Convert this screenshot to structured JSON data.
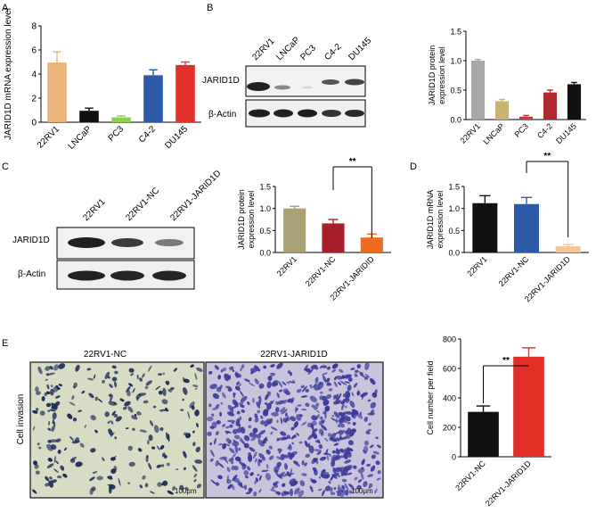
{
  "panels": {
    "A": {
      "letter": "A",
      "chart": {
        "type": "bar",
        "categories": [
          "22RV1",
          "LNCaP",
          "PC3",
          "C4-2",
          "DU145"
        ],
        "values": [
          4.95,
          0.95,
          0.4,
          3.9,
          4.75
        ],
        "errors": [
          0.9,
          0.22,
          0.12,
          0.45,
          0.25
        ],
        "colors": [
          "#e8b47c",
          "#111111",
          "#8fd14f",
          "#2d5aa8",
          "#e23028"
        ],
        "ylabel": "JARID1D mRNA expression level",
        "ylim": [
          0,
          8
        ],
        "yticks": [
          "0",
          "2",
          "4",
          "6",
          "8"
        ]
      }
    },
    "B": {
      "letter": "B",
      "blot_lanes": [
        "22RV1",
        "LNCaP",
        "PC3",
        "C4-2",
        "DU145"
      ],
      "blot_rows": [
        "JARID1D",
        "β-Actin"
      ],
      "chart": {
        "type": "bar",
        "categories": [
          "22RV1",
          "LNCaP",
          "PC3",
          "C4-2",
          "DU145"
        ],
        "values": [
          1.0,
          0.31,
          0.05,
          0.46,
          0.6
        ],
        "errors": [
          0.02,
          0.03,
          0.02,
          0.04,
          0.03
        ],
        "colors": [
          "#a8a8a8",
          "#c9b373",
          "#e23028",
          "#b22a30",
          "#111111"
        ],
        "ylabel_lines": [
          "JARID1D protein",
          "expression level"
        ],
        "ylim": [
          0,
          1.5
        ],
        "yticks": [
          "0.0",
          "0.5",
          "1.0",
          "1.5"
        ]
      }
    },
    "C": {
      "letter": "C",
      "blot_lanes": [
        "22RV1",
        "22RV1-NC",
        "22RV1-JARID1D"
      ],
      "blot_rows": [
        "JARID1D",
        "β-Actin"
      ],
      "chart": {
        "type": "bar",
        "categories": [
          "22RV1",
          "22RV1-NC",
          "22RV1-JARIDID"
        ],
        "values": [
          1.0,
          0.66,
          0.34
        ],
        "errors": [
          0.05,
          0.09,
          0.08
        ],
        "colors": [
          "#a9a076",
          "#a61e2a",
          "#f06b1f"
        ],
        "ylabel_lines": [
          "JARID1D protein",
          "expression level"
        ],
        "ylim": [
          0,
          1.5
        ],
        "yticks": [
          "0.0",
          "0.5",
          "1.0",
          "1.5"
        ],
        "significance": "**"
      }
    },
    "D": {
      "letter": "D",
      "chart": {
        "type": "bar",
        "categories": [
          "22RV1",
          "22RV1-NC",
          "22RV1-JARID1D"
        ],
        "values": [
          1.12,
          1.1,
          0.14
        ],
        "errors": [
          0.17,
          0.15,
          0.04
        ],
        "colors": [
          "#111111",
          "#2d5aa8",
          "#f5c39a"
        ],
        "ylabel_lines": [
          "JARID1D mRNA",
          "expression level"
        ],
        "ylim": [
          0,
          1.5
        ],
        "yticks": [
          "0.0",
          "0.5",
          "1.0",
          "1.5"
        ],
        "significance": "**"
      }
    },
    "E": {
      "letter": "E",
      "image_titles": [
        "22RV1-NC",
        "22RV1-JARID1D"
      ],
      "row_label": "Cell invasion",
      "scale_bar": "100μm",
      "chart": {
        "type": "bar",
        "categories": [
          "22RV1-NC",
          "22RV1-JARID1D"
        ],
        "values": [
          305,
          680
        ],
        "errors": [
          40,
          60
        ],
        "colors": [
          "#111111",
          "#e23028"
        ],
        "ylabel": "Cell number per field",
        "ylim": [
          0,
          800
        ],
        "yticks": [
          "0",
          "200",
          "400",
          "600",
          "800"
        ],
        "significance": "**"
      }
    }
  }
}
